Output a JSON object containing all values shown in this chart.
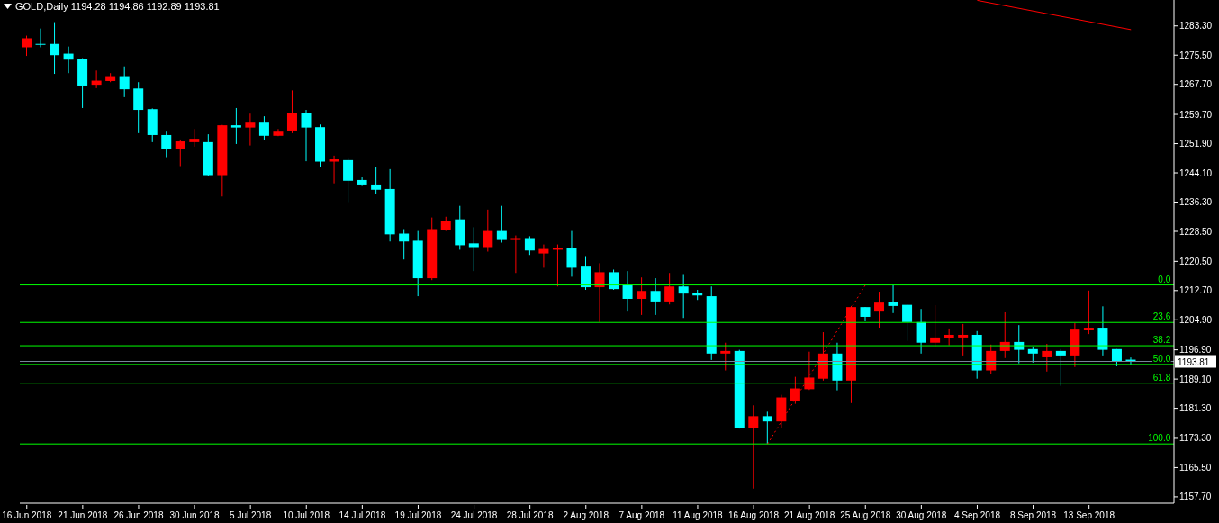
{
  "chart_data": {
    "type": "candlestick",
    "title": "GOLD,Daily  1194.28 1194.86 1192.89 1193.81",
    "categories": [
      "16 Jun 2018",
      null,
      null,
      null,
      "21 Jun 2018",
      null,
      null,
      null,
      "26 Jun 2018",
      null,
      null,
      null,
      "30 Jun 2018",
      null,
      null,
      null,
      "5 Jul 2018",
      null,
      null,
      null,
      "10 Jul 2018",
      null,
      null,
      null,
      "14 Jul 2018",
      null,
      null,
      null,
      "19 Jul 2018",
      null,
      null,
      null,
      "24 Jul 2018",
      null,
      null,
      null,
      "28 Jul 2018",
      null,
      null,
      null,
      "2 Aug 2018",
      null,
      null,
      null,
      "7 Aug 2018",
      null,
      null,
      null,
      "11 Aug 2018",
      null,
      null,
      null,
      "16 Aug 2018",
      null,
      null,
      null,
      "21 Aug 2018",
      null,
      null,
      null,
      "25 Aug 2018",
      null,
      null,
      null,
      "30 Aug 2018",
      null,
      null,
      null,
      "4 Sep 2018",
      null,
      null,
      null,
      "8 Sep 2018",
      null,
      null,
      null,
      "13 Sep 2018",
      null,
      null,
      null
    ],
    "ohlc": [
      [
        1277.6,
        1280.7,
        1275.3,
        1280.0
      ],
      [
        1278.5,
        1282.6,
        1277.6,
        1278.5
      ],
      [
        1278.5,
        1284.3,
        1270.5,
        1275.5
      ],
      [
        1275.9,
        1277.8,
        1270.7,
        1274.3
      ],
      [
        1274.5,
        1274.7,
        1261.4,
        1267.4
      ],
      [
        1267.6,
        1271.4,
        1266.7,
        1268.7
      ],
      [
        1268.6,
        1270.7,
        1268.3,
        1269.9
      ],
      [
        1269.9,
        1272.5,
        1264.3,
        1266.4
      ],
      [
        1266.6,
        1268.3,
        1254.7,
        1260.9
      ],
      [
        1261.1,
        1261.3,
        1252.3,
        1254.2
      ],
      [
        1254.2,
        1255.1,
        1248.3,
        1250.4
      ],
      [
        1250.4,
        1253.0,
        1245.9,
        1252.5
      ],
      [
        1252.3,
        1255.8,
        1251.1,
        1253.2
      ],
      [
        1252.3,
        1254.4,
        1243.3,
        1243.5
      ],
      [
        1243.5,
        1256.9,
        1237.8,
        1256.8
      ],
      [
        1256.8,
        1261.4,
        1251.8,
        1256.2
      ],
      [
        1256.2,
        1259.9,
        1251.4,
        1257.5
      ],
      [
        1257.5,
        1259.2,
        1252.8,
        1254.0
      ],
      [
        1254.0,
        1255.8,
        1253.9,
        1255.1
      ],
      [
        1255.4,
        1266.1,
        1254.7,
        1260.1
      ],
      [
        1260.1,
        1260.9,
        1247.2,
        1256.2
      ],
      [
        1256.3,
        1257.0,
        1245.6,
        1247.1
      ],
      [
        1247.1,
        1248.7,
        1241.3,
        1247.7
      ],
      [
        1247.5,
        1248.2,
        1236.3,
        1242.0
      ],
      [
        1242.2,
        1242.9,
        1240.6,
        1241.0
      ],
      [
        1241.0,
        1245.6,
        1238.4,
        1239.6
      ],
      [
        1239.8,
        1245.1,
        1225.8,
        1227.7
      ],
      [
        1227.9,
        1229.1,
        1221.0,
        1225.8
      ],
      [
        1226.0,
        1228.6,
        1211.2,
        1216.0
      ],
      [
        1216.0,
        1232.2,
        1215.5,
        1229.1
      ],
      [
        1228.9,
        1232.4,
        1228.6,
        1231.2
      ],
      [
        1231.7,
        1235.3,
        1223.6,
        1224.8
      ],
      [
        1225.3,
        1229.6,
        1217.9,
        1224.3
      ],
      [
        1224.3,
        1234.3,
        1223.1,
        1228.6
      ],
      [
        1228.6,
        1235.3,
        1225.5,
        1226.2
      ],
      [
        1226.2,
        1227.4,
        1217.4,
        1226.7
      ],
      [
        1226.7,
        1227.2,
        1222.2,
        1223.4
      ],
      [
        1222.6,
        1225.0,
        1218.8,
        1223.8
      ],
      [
        1223.6,
        1225.0,
        1213.8,
        1224.1
      ],
      [
        1224.1,
        1228.6,
        1216.4,
        1218.8
      ],
      [
        1219.1,
        1221.9,
        1212.9,
        1213.6
      ],
      [
        1213.6,
        1220.0,
        1204.3,
        1217.6
      ],
      [
        1217.6,
        1218.3,
        1212.9,
        1213.1
      ],
      [
        1214.1,
        1217.9,
        1207.1,
        1210.5
      ],
      [
        1210.5,
        1216.2,
        1206.2,
        1212.6
      ],
      [
        1212.6,
        1216.0,
        1206.2,
        1209.8
      ],
      [
        1209.8,
        1217.4,
        1209.0,
        1213.8
      ],
      [
        1213.8,
        1217.1,
        1205.4,
        1211.9
      ],
      [
        1212.1,
        1212.9,
        1210.2,
        1211.4
      ],
      [
        1211.2,
        1213.8,
        1194.2,
        1195.9
      ],
      [
        1195.9,
        1198.8,
        1191.4,
        1196.6
      ],
      [
        1196.6,
        1196.9,
        1175.9,
        1176.1
      ],
      [
        1176.1,
        1182.1,
        1159.9,
        1179.2
      ],
      [
        1179.2,
        1180.4,
        1171.8,
        1177.8
      ],
      [
        1177.8,
        1184.9,
        1176.1,
        1184.2
      ],
      [
        1183.2,
        1189.7,
        1182.5,
        1186.6
      ],
      [
        1186.4,
        1196.4,
        1186.2,
        1189.5
      ],
      [
        1189.2,
        1201.6,
        1188.7,
        1195.9
      ],
      [
        1195.9,
        1198.8,
        1186.1,
        1188.7
      ],
      [
        1188.7,
        1208.6,
        1182.7,
        1208.3
      ],
      [
        1208.3,
        1208.3,
        1204.5,
        1205.7
      ],
      [
        1207.1,
        1212.4,
        1202.8,
        1209.5
      ],
      [
        1209.6,
        1214.1,
        1206.7,
        1208.6
      ],
      [
        1208.9,
        1209.0,
        1199.3,
        1204.3
      ],
      [
        1204.3,
        1207.8,
        1195.9,
        1198.8
      ],
      [
        1198.8,
        1208.8,
        1197.6,
        1200.2
      ],
      [
        1200.0,
        1202.6,
        1198.1,
        1200.9
      ],
      [
        1200.2,
        1203.8,
        1195.4,
        1200.9
      ],
      [
        1200.9,
        1201.9,
        1189.2,
        1191.4
      ],
      [
        1191.4,
        1198.3,
        1190.4,
        1196.6
      ],
      [
        1196.6,
        1206.9,
        1194.7,
        1199.0
      ],
      [
        1199.0,
        1203.5,
        1193.3,
        1196.9
      ],
      [
        1197.1,
        1197.8,
        1193.5,
        1195.9
      ],
      [
        1194.9,
        1198.5,
        1191.1,
        1196.6
      ],
      [
        1196.6,
        1197.1,
        1187.3,
        1195.4
      ],
      [
        1195.4,
        1204.0,
        1192.3,
        1202.3
      ],
      [
        1202.1,
        1212.7,
        1201.1,
        1202.8
      ],
      [
        1202.8,
        1208.5,
        1195.4,
        1196.9
      ],
      [
        1197.1,
        1197.1,
        1192.5,
        1193.7
      ],
      [
        1194.28,
        1194.86,
        1192.89,
        1193.81
      ]
    ],
    "colors": [
      "#ff0000",
      "#00ffff",
      "#00ffff",
      "#00ffff",
      "#00ffff",
      "#ff0000",
      "#ff0000",
      "#00ffff",
      "#00ffff",
      "#00ffff",
      "#00ffff",
      "#ff0000",
      "#ff0000",
      "#00ffff",
      "#ff0000",
      "#00ffff",
      "#ff0000",
      "#00ffff",
      "#ff0000",
      "#ff0000",
      "#00ffff",
      "#00ffff",
      "#ff0000",
      "#00ffff",
      "#00ffff",
      "#00ffff",
      "#00ffff",
      "#00ffff",
      "#00ffff",
      "#ff0000",
      "#ff0000",
      "#00ffff",
      "#00ffff",
      "#ff0000",
      "#00ffff",
      "#ff0000",
      "#00ffff",
      "#ff0000",
      "#ff0000",
      "#00ffff",
      "#00ffff",
      "#ff0000",
      "#00ffff",
      "#00ffff",
      "#ff0000",
      "#00ffff",
      "#ff0000",
      "#00ffff",
      "#00ffff",
      "#00ffff",
      "#ff0000",
      "#00ffff",
      "#ff0000",
      "#00ffff",
      "#ff0000",
      "#ff0000",
      "#ff0000",
      "#ff0000",
      "#00ffff",
      "#ff0000",
      "#00ffff",
      "#ff0000",
      "#00ffff",
      "#00ffff",
      "#00ffff",
      "#ff0000",
      "#ff0000",
      "#ff0000",
      "#00ffff",
      "#ff0000",
      "#ff0000",
      "#00ffff",
      "#00ffff",
      "#ff0000",
      "#00ffff",
      "#ff0000",
      "#ff0000",
      "#00ffff",
      "#00ffff",
      "#00ffff"
    ],
    "series": [
      {
        "type": "line",
        "color": "#ff0000",
        "line_style": "dotted",
        "values": [
          null,
          null,
          null,
          null,
          null,
          null,
          null,
          null,
          null,
          null,
          null,
          null,
          null,
          null,
          null,
          null,
          null,
          null,
          null,
          null,
          null,
          null,
          null,
          null,
          null,
          null,
          null,
          null,
          null,
          null,
          null,
          null,
          null,
          null,
          null,
          null,
          null,
          null,
          null,
          null,
          null,
          null,
          null,
          null,
          null,
          null,
          null,
          null,
          null,
          null,
          null,
          null,
          null,
          1171.8,
          null,
          null,
          null,
          null,
          null,
          null,
          1214.2,
          null,
          null,
          null,
          null,
          null,
          null,
          null,
          null,
          null,
          null,
          null,
          null,
          null,
          null,
          null,
          null,
          null,
          null,
          null
        ]
      },
      {
        "type": "line",
        "color": "#ff0000",
        "line_style": "solid",
        "values": [
          null,
          null,
          null,
          null,
          null,
          null,
          null,
          null,
          null,
          null,
          null,
          null,
          null,
          null,
          null,
          null,
          null,
          null,
          null,
          null,
          null,
          null,
          null,
          null,
          null,
          null,
          null,
          null,
          null,
          null,
          null,
          null,
          null,
          null,
          null,
          null,
          null,
          null,
          null,
          null,
          null,
          null,
          null,
          null,
          null,
          null,
          null,
          null,
          null,
          null,
          null,
          null,
          null,
          null,
          null,
          null,
          null,
          null,
          null,
          null,
          null,
          null,
          null,
          null,
          null,
          null,
          null,
          null,
          1290.1,
          null,
          null,
          null,
          null,
          null,
          null,
          null,
          null,
          null,
          null,
          1282.3
        ]
      }
    ],
    "ylim": [
      1156.0,
      1290.2
    ],
    "yticks": [
      {
        "value": 1283.3,
        "label": "1283.30"
      },
      {
        "value": 1275.5,
        "label": "1275.50"
      },
      {
        "value": 1267.7,
        "label": "1267.70"
      },
      {
        "value": 1259.7,
        "label": "1259.70"
      },
      {
        "value": 1251.9,
        "label": "1251.90"
      },
      {
        "value": 1244.1,
        "label": "1244.10"
      },
      {
        "value": 1236.3,
        "label": "1236.30"
      },
      {
        "value": 1228.5,
        "label": "1228.50"
      },
      {
        "value": 1220.5,
        "label": "1220.50"
      },
      {
        "value": 1212.7,
        "label": "1212.70"
      },
      {
        "value": 1204.9,
        "label": "1204.90"
      },
      {
        "value": 1196.9,
        "label": "1196.90"
      },
      {
        "value": 1189.1,
        "label": "1189.10"
      },
      {
        "value": 1181.3,
        "label": "1181.30"
      },
      {
        "value": 1173.3,
        "label": "1173.30"
      },
      {
        "value": 1165.5,
        "label": "1165.50"
      },
      {
        "value": 1157.7,
        "label": "1157.70"
      }
    ],
    "ref_lines": [
      {
        "axis": "y",
        "value": 1214.2,
        "color": "#00ff00"
      },
      {
        "axis": "y",
        "value": 1204.2,
        "color": "#00ff00"
      },
      {
        "axis": "y",
        "value": 1198.0,
        "color": "#00ff00"
      },
      {
        "axis": "y",
        "value": 1193.0,
        "color": "#00ff00"
      },
      {
        "axis": "y",
        "value": 1188.0,
        "color": "#00ff00"
      },
      {
        "axis": "y",
        "value": 1171.8,
        "color": "#00ff00"
      },
      {
        "axis": "y",
        "value": 1193.81,
        "label": "1193.81",
        "color": "#778899"
      }
    ],
    "annotations": [
      {
        "text": "0.0",
        "y": 1214.2
      },
      {
        "text": "23.6",
        "y": 1204.2
      },
      {
        "text": "38.2",
        "y": 1198.0
      },
      {
        "text": "50.0",
        "y": 1193.0
      },
      {
        "text": "61.8",
        "y": 1188.0
      },
      {
        "text": "100.0",
        "y": 1171.8
      }
    ]
  }
}
